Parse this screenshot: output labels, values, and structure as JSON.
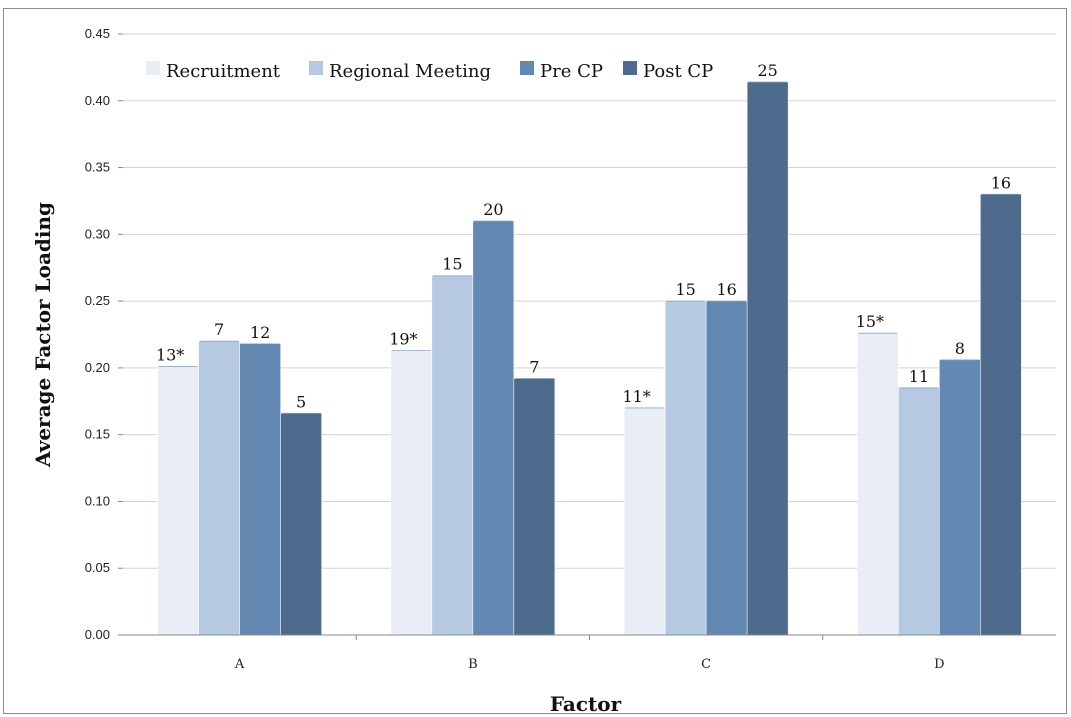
{
  "chart_data": {
    "type": "bar",
    "title": "",
    "xlabel": "Factor",
    "ylabel": "Average Factor Loading",
    "ylim": [
      0,
      0.45
    ],
    "y_ticks": [
      "0.00",
      "0.05",
      "0.10",
      "0.15",
      "0.20",
      "0.25",
      "0.30",
      "0.35",
      "0.40",
      "0.45"
    ],
    "categories": [
      "A",
      "B",
      "C",
      "D"
    ],
    "grid": true,
    "legend_position": "top-left",
    "series": [
      {
        "name": "Recruitment",
        "color": "#e9eef6",
        "values": [
          0.201,
          0.213,
          0.17,
          0.226
        ],
        "labels": [
          "13*",
          "19*",
          "11*",
          "15*"
        ]
      },
      {
        "name": "Regional Meeting",
        "color": "#b5c9e2",
        "values": [
          0.22,
          0.269,
          0.25,
          0.185
        ],
        "labels": [
          "7",
          "15",
          "15",
          "11"
        ]
      },
      {
        "name": "Pre CP",
        "color": "#6389b3",
        "values": [
          0.218,
          0.31,
          0.25,
          0.206
        ],
        "labels": [
          "12",
          "20",
          "16",
          "8"
        ]
      },
      {
        "name": "Post CP",
        "color": "#4e6a8c",
        "values": [
          0.166,
          0.192,
          0.414,
          0.33
        ],
        "labels": [
          "5",
          "7",
          "25",
          "16"
        ]
      }
    ]
  }
}
